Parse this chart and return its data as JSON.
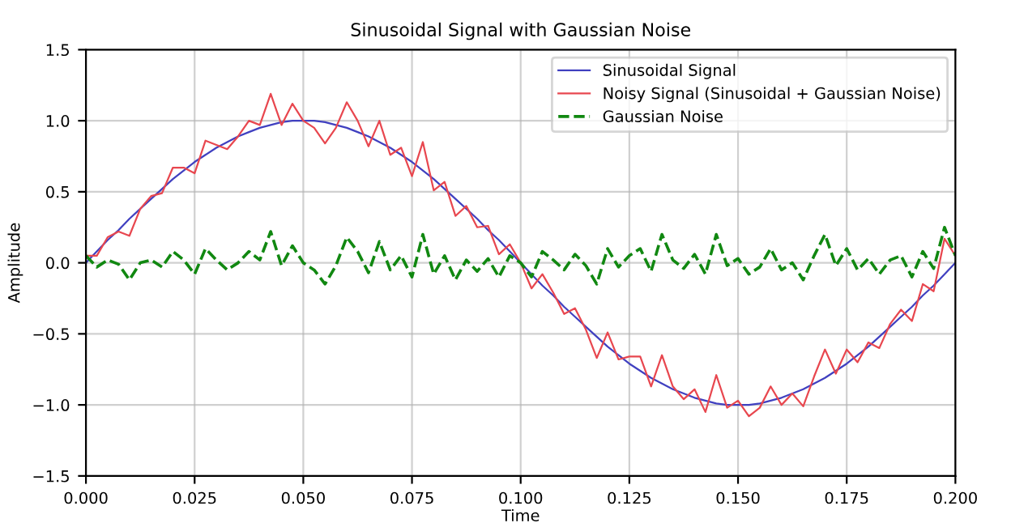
{
  "chart_data": {
    "type": "line",
    "title": "Sinusoidal Signal with Gaussian Noise",
    "xlabel": "Time",
    "ylabel": "Amplitude",
    "x": [
      0,
      0.0025,
      0.005,
      0.0075,
      0.01,
      0.0125,
      0.015,
      0.0175,
      0.02,
      0.0225,
      0.025,
      0.0275,
      0.03,
      0.0325,
      0.035,
      0.0375,
      0.04,
      0.0425,
      0.045,
      0.0475,
      0.05,
      0.0525,
      0.055,
      0.0575,
      0.06,
      0.0625,
      0.065,
      0.0675,
      0.07,
      0.0725,
      0.075,
      0.0775,
      0.08,
      0.0825,
      0.085,
      0.0875,
      0.09,
      0.0925,
      0.095,
      0.0975,
      0.1,
      0.1025,
      0.105,
      0.1075,
      0.11,
      0.1125,
      0.115,
      0.1175,
      0.12,
      0.1225,
      0.125,
      0.1275,
      0.13,
      0.1325,
      0.135,
      0.1375,
      0.14,
      0.1425,
      0.145,
      0.1475,
      0.15,
      0.1525,
      0.155,
      0.1575,
      0.16,
      0.1625,
      0.165,
      0.1675,
      0.17,
      0.1725,
      0.175,
      0.1775,
      0.18,
      0.1825,
      0.185,
      0.1875,
      0.19,
      0.1925,
      0.195,
      0.1975,
      0.2
    ],
    "series": [
      {
        "name": "Sinusoidal Signal",
        "color": "#4040c0",
        "line_style": "solid",
        "values": [
          0,
          0.08,
          0.16,
          0.23,
          0.31,
          0.38,
          0.45,
          0.52,
          0.59,
          0.65,
          0.71,
          0.76,
          0.81,
          0.85,
          0.89,
          0.92,
          0.95,
          0.97,
          0.99,
          1.0,
          1.0,
          1.0,
          0.99,
          0.97,
          0.95,
          0.92,
          0.89,
          0.85,
          0.81,
          0.76,
          0.71,
          0.65,
          0.59,
          0.52,
          0.45,
          0.38,
          0.31,
          0.23,
          0.16,
          0.08,
          0,
          -0.08,
          -0.16,
          -0.23,
          -0.31,
          -0.38,
          -0.45,
          -0.52,
          -0.59,
          -0.65,
          -0.71,
          -0.76,
          -0.81,
          -0.85,
          -0.89,
          -0.92,
          -0.95,
          -0.97,
          -0.99,
          -1.0,
          -1.0,
          -1.0,
          -0.99,
          -0.97,
          -0.95,
          -0.92,
          -0.89,
          -0.85,
          -0.81,
          -0.76,
          -0.71,
          -0.65,
          -0.59,
          -0.52,
          -0.45,
          -0.38,
          -0.31,
          -0.23,
          -0.16,
          -0.08,
          0
        ]
      },
      {
        "name": "Noisy Signal (Sinusoidal + Gaussian Noise)",
        "color": "#e8474f",
        "line_style": "solid",
        "values": [
          0.05,
          0.05,
          0.18,
          0.22,
          0.19,
          0.38,
          0.47,
          0.49,
          0.67,
          0.67,
          0.63,
          0.86,
          0.83,
          0.8,
          0.89,
          1.0,
          0.97,
          1.19,
          0.97,
          1.12,
          1.0,
          0.95,
          0.84,
          0.95,
          1.13,
          1.0,
          0.82,
          1.0,
          0.76,
          0.81,
          0.61,
          0.85,
          0.51,
          0.57,
          0.33,
          0.4,
          0.25,
          0.26,
          0.06,
          0.13,
          0.0,
          -0.18,
          -0.08,
          -0.21,
          -0.36,
          -0.32,
          -0.47,
          -0.67,
          -0.49,
          -0.68,
          -0.66,
          -0.66,
          -0.87,
          -0.65,
          -0.87,
          -0.96,
          -0.89,
          -1.05,
          -0.79,
          -1.02,
          -0.97,
          -1.08,
          -1.02,
          -0.87,
          -1.0,
          -0.92,
          -1.01,
          -0.8,
          -0.61,
          -0.78,
          -0.61,
          -0.7,
          -0.56,
          -0.6,
          -0.43,
          -0.33,
          -0.41,
          -0.15,
          -0.2,
          0.17,
          0.05
        ]
      },
      {
        "name": "Gaussian Noise",
        "color": "#118811",
        "line_style": "dashed",
        "values": [
          0.05,
          -0.03,
          0.02,
          -0.01,
          -0.12,
          0.0,
          0.02,
          -0.03,
          0.08,
          0.02,
          -0.08,
          0.1,
          0.02,
          -0.05,
          0.0,
          0.08,
          0.02,
          0.22,
          -0.02,
          0.12,
          0.0,
          -0.05,
          -0.15,
          -0.02,
          0.18,
          0.08,
          -0.07,
          0.15,
          -0.05,
          0.05,
          -0.1,
          0.2,
          -0.08,
          0.05,
          -0.12,
          0.02,
          -0.06,
          0.03,
          -0.1,
          0.05,
          0.0,
          -0.1,
          0.08,
          0.02,
          -0.05,
          0.06,
          -0.02,
          -0.15,
          0.1,
          -0.03,
          0.05,
          0.1,
          -0.06,
          0.2,
          0.02,
          -0.04,
          0.06,
          -0.08,
          0.2,
          -0.02,
          0.03,
          -0.08,
          -0.03,
          0.1,
          -0.05,
          0.0,
          -0.12,
          0.05,
          0.2,
          -0.02,
          0.1,
          -0.05,
          0.03,
          -0.08,
          0.02,
          0.05,
          -0.1,
          0.08,
          -0.04,
          0.25,
          0.05
        ]
      }
    ],
    "xlim": [
      0,
      0.2
    ],
    "ylim": [
      -1.5,
      1.5
    ],
    "xticks": [
      {
        "value": 0,
        "label": "0.000"
      },
      {
        "value": 0.025,
        "label": "0.025"
      },
      {
        "value": 0.05,
        "label": "0.050"
      },
      {
        "value": 0.075,
        "label": "0.075"
      },
      {
        "value": 0.1,
        "label": "0.100"
      },
      {
        "value": 0.125,
        "label": "0.125"
      },
      {
        "value": 0.15,
        "label": "0.150"
      },
      {
        "value": 0.175,
        "label": "0.175"
      },
      {
        "value": 0.2,
        "label": "0.200"
      }
    ],
    "yticks": [
      {
        "value": -1.5,
        "label": "−1.5"
      },
      {
        "value": -1.0,
        "label": "−1.0"
      },
      {
        "value": -0.5,
        "label": "−0.5"
      },
      {
        "value": 0,
        "label": "0.0"
      },
      {
        "value": 0.5,
        "label": "0.5"
      },
      {
        "value": 1.0,
        "label": "1.0"
      },
      {
        "value": 1.5,
        "label": "1.5"
      }
    ],
    "grid": true,
    "legend": "top right"
  }
}
